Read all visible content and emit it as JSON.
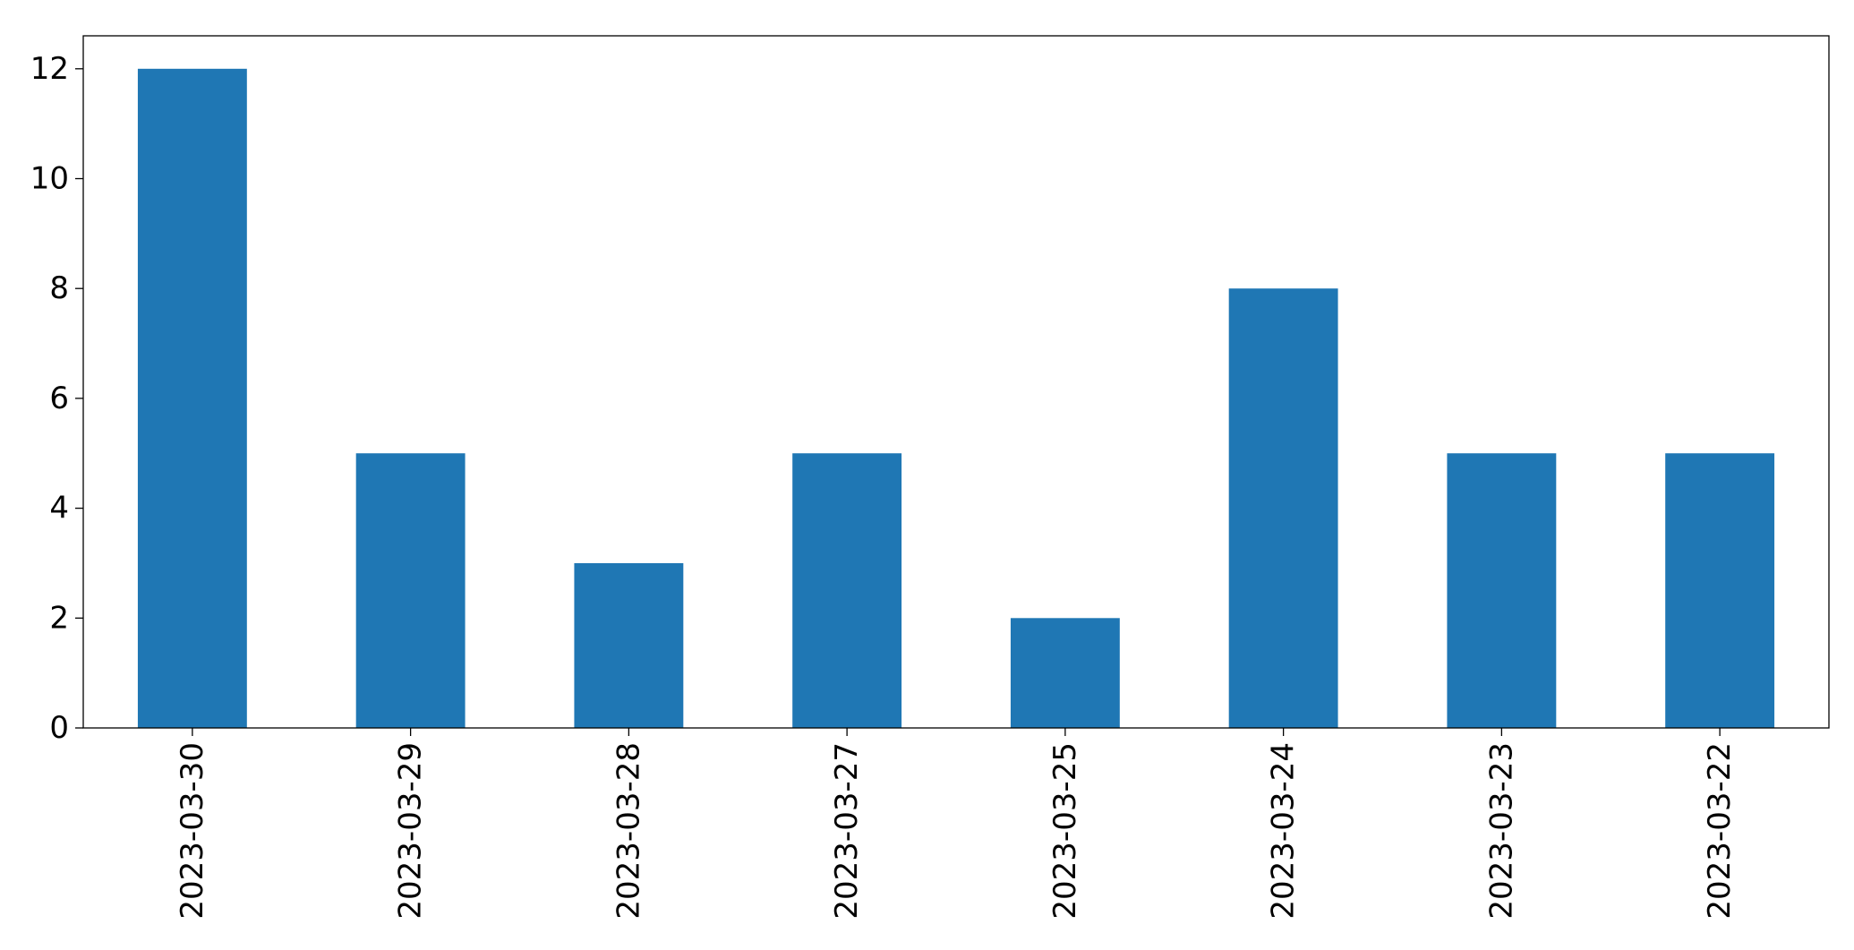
{
  "chart_data": {
    "type": "bar",
    "categories": [
      "2023-03-30",
      "2023-03-29",
      "2023-03-28",
      "2023-03-27",
      "2023-03-25",
      "2023-03-24",
      "2023-03-23",
      "2023-03-22"
    ],
    "values": [
      12,
      5,
      3,
      5,
      2,
      8,
      5,
      5
    ],
    "title": "",
    "xlabel": "",
    "ylabel": "",
    "ylim": [
      0,
      12.6
    ],
    "yticks": [
      "0",
      "2",
      "4",
      "6",
      "8",
      "10",
      "12"
    ],
    "grid": false,
    "legend": "none",
    "bar_color": "#1f77b4",
    "axis_color": "#000000"
  }
}
